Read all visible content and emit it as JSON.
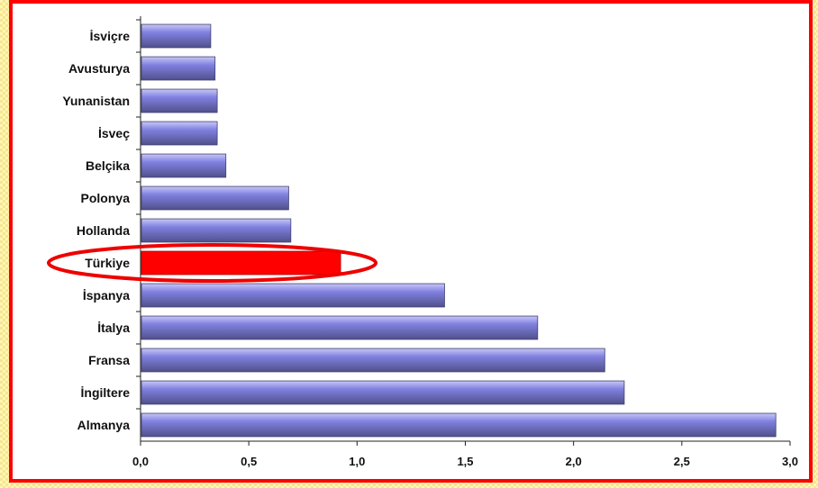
{
  "chart_data": {
    "type": "bar",
    "orientation": "horizontal",
    "categories": [
      "İsviçre",
      "Avusturya",
      "Yunanistan",
      "İsveç",
      "Belçika",
      "Polonya",
      "Hollanda",
      "Türkiye",
      "İspanya",
      "İtalya",
      "Fransa",
      "İngiltere",
      "Almanya"
    ],
    "values": [
      0.32,
      0.34,
      0.35,
      0.35,
      0.39,
      0.68,
      0.69,
      0.92,
      1.4,
      1.83,
      2.14,
      2.23,
      2.93
    ],
    "highlight": "Türkiye",
    "x_ticks": [
      "0,0",
      "0,5",
      "1,0",
      "1,5",
      "2,0",
      "2,5",
      "3,0"
    ],
    "xlim": [
      0,
      3
    ],
    "grid": false,
    "legend": false,
    "colors": {
      "bar": "#8080e0",
      "bar_light": "#c8c8f8",
      "bar_dark": "#50508c",
      "highlight": "#ff0000",
      "frame": "#ff0000",
      "ellipse": "#ee0000"
    }
  }
}
